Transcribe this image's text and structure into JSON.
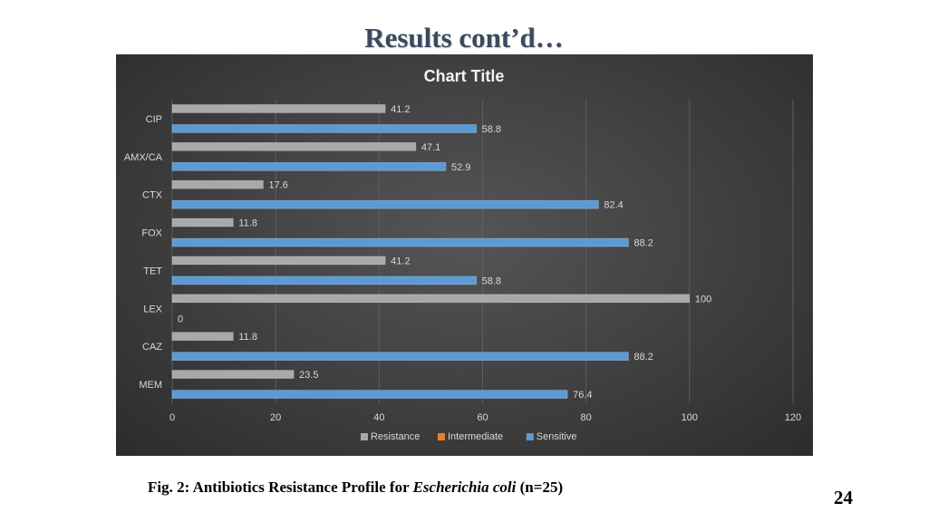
{
  "slide": {
    "title": "Results cont’d…",
    "caption_prefix": "Fig. 2: Antibiotics Resistance Profile for ",
    "caption_organism": "Escherichia coli",
    "caption_suffix": " (n=25)",
    "page_number": "24"
  },
  "colors": {
    "Resistance": "#a9a9a9",
    "Intermediate": "#ed7d31",
    "Sensitive": "#5b9bd5"
  },
  "chart_data": {
    "type": "bar",
    "orientation": "horizontal",
    "title": "Chart Title",
    "categories": [
      "CIP",
      "AMX/CA",
      "CTX",
      "FOX",
      "TET",
      "LEX",
      "CAZ",
      "MEM"
    ],
    "series": [
      {
        "name": "Resistance",
        "values": [
          41.2,
          47.1,
          17.6,
          11.8,
          41.2,
          100,
          11.8,
          23.5
        ]
      },
      {
        "name": "Intermediate",
        "values": [
          0,
          0,
          0,
          0,
          0,
          0,
          0,
          0
        ]
      },
      {
        "name": "Sensitive",
        "values": [
          58.8,
          52.9,
          82.4,
          88.2,
          58.8,
          0,
          88.2,
          76.4
        ]
      }
    ],
    "xlim": [
      0,
      120
    ],
    "xticks": [
      0,
      20,
      40,
      60,
      80,
      100,
      120
    ],
    "grid": true,
    "legend": "bottom"
  }
}
